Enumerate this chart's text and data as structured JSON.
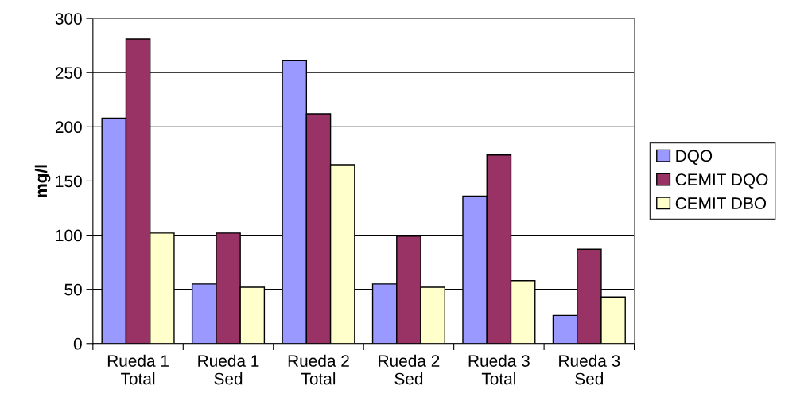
{
  "chart_data": {
    "type": "bar",
    "ylabel": "mg/l",
    "categories": [
      "Rueda 1\nTotal",
      "Rueda 1\nSed",
      "Rueda 2\nTotal",
      "Rueda 2\nSed",
      "Rueda 3\nTotal",
      "Rueda 3\nSed"
    ],
    "series": [
      {
        "name": "DQO",
        "color": "#9999ff",
        "values": [
          208,
          55,
          261,
          55,
          136,
          26
        ]
      },
      {
        "name": "CEMIT DQO",
        "color": "#993366",
        "values": [
          281,
          102,
          212,
          99,
          174,
          87
        ]
      },
      {
        "name": "CEMIT DBO",
        "color": "#ffffcc",
        "values": [
          102,
          52,
          165,
          52,
          58,
          43
        ]
      }
    ],
    "ylim": [
      0,
      300
    ],
    "yticks": [
      0,
      50,
      100,
      150,
      200,
      250,
      300
    ],
    "grid": "y",
    "legend": "right"
  }
}
